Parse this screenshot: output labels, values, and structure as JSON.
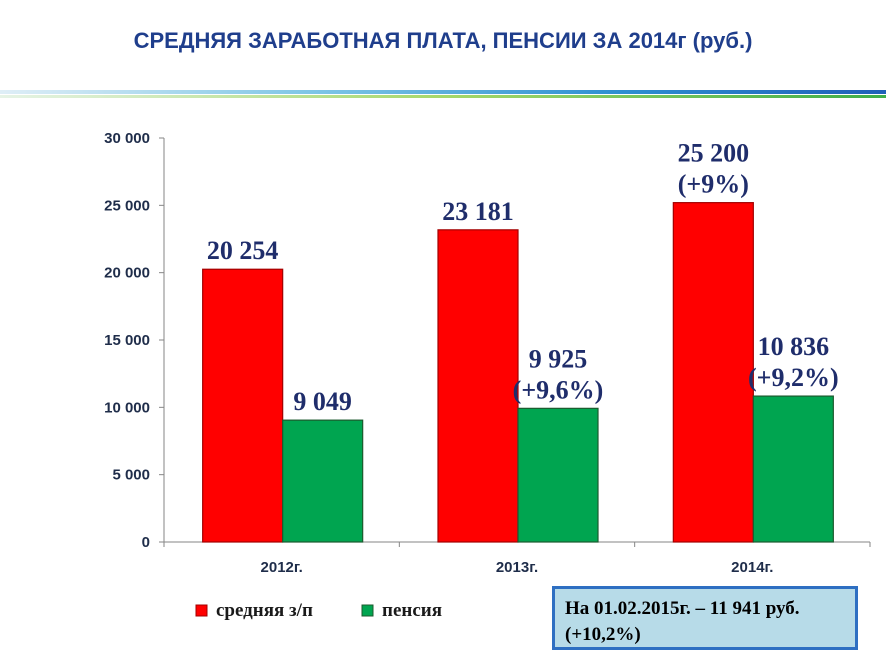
{
  "title": "СРЕДНЯЯ ЗАРАБОТНАЯ ПЛАТА, ПЕНСИИ ЗА 2014г (руб.)",
  "colors": {
    "salary": "#ff0000",
    "pension": "#00a550",
    "title": "#1f3e8c",
    "label": "#1f2d6b"
  },
  "chart_data": {
    "type": "bar",
    "categories": [
      "2012г.",
      "2013г.",
      "2014г."
    ],
    "series": [
      {
        "name": "средняя з/п",
        "values": [
          20254,
          23181,
          25200
        ],
        "labels": [
          [
            "20 254"
          ],
          [
            "23 181"
          ],
          [
            "25 200",
            "(+9%)"
          ]
        ]
      },
      {
        "name": "пенсия",
        "values": [
          9049,
          9925,
          10836
        ],
        "labels": [
          [
            "9 049"
          ],
          [
            "9 925",
            "(+9,6%)"
          ],
          [
            "10 836",
            "(+9,2%)"
          ]
        ]
      }
    ],
    "ylim": [
      0,
      30000
    ],
    "yticks": [
      0,
      5000,
      10000,
      15000,
      20000,
      25000,
      30000
    ],
    "ytick_labels": [
      "0",
      "5 000",
      "10 000",
      "15 000",
      "20 000",
      "25 000",
      "30 000"
    ],
    "legend": [
      "средняя з/п",
      "пенсия"
    ],
    "legend_position": "bottom-left"
  },
  "note": {
    "line1": "На 01.02.2015г. – 11 941 руб.",
    "line2": "(+10,2%)"
  }
}
